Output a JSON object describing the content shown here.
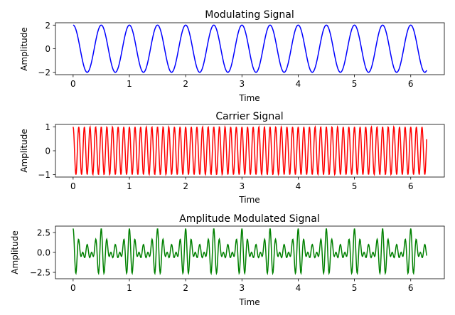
{
  "chart_data": [
    {
      "type": "line",
      "title": "Modulating Signal",
      "xlabel": "Time",
      "ylabel": "Amplitude",
      "xlim": [
        -0.314,
        6.597
      ],
      "ylim": [
        -2.2,
        2.2
      ],
      "xticks": [
        0,
        1,
        2,
        3,
        4,
        5,
        6
      ],
      "yticks": [
        -2,
        0,
        2
      ],
      "series": [
        {
          "color": "#0000ff",
          "function": "2*cos(2*pi*2*t)",
          "t_range": [
            0,
            6.283
          ],
          "samples": 1000
        }
      ]
    },
    {
      "type": "line",
      "title": "Carrier Signal",
      "xlabel": "Time",
      "ylabel": "Amplitude",
      "xlim": [
        -0.314,
        6.597
      ],
      "ylim": [
        -1.1,
        1.1
      ],
      "xticks": [
        0,
        1,
        2,
        3,
        4,
        5,
        6
      ],
      "yticks": [
        -1,
        0,
        1
      ],
      "series": [
        {
          "color": "#ff0000",
          "function": "cos(2*pi*10*t)",
          "t_range": [
            0,
            6.283
          ],
          "samples": 1000
        }
      ]
    },
    {
      "type": "line",
      "title": "Amplitude Modulated Signal",
      "xlabel": "Time",
      "ylabel": "Amplitude",
      "xlim": [
        -0.314,
        6.597
      ],
      "ylim": [
        -3.3,
        3.3
      ],
      "xticks": [
        0,
        1,
        2,
        3,
        4,
        5,
        6
      ],
      "yticks": [
        -2.5,
        0.0,
        2.5
      ],
      "series": [
        {
          "color": "#008000",
          "function": "(1 + 2*cos(2*pi*2*t)) * cos(2*pi*10*t)",
          "t_range": [
            0,
            6.283
          ],
          "samples": 1000
        }
      ]
    }
  ]
}
